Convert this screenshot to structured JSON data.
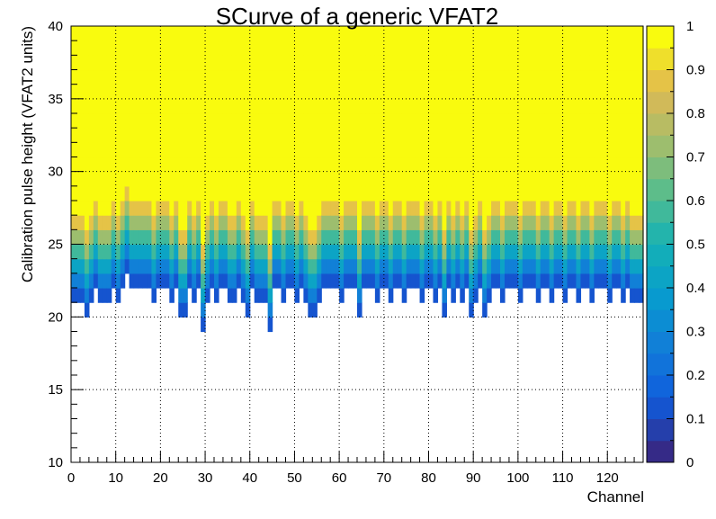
{
  "chart_data": {
    "type": "heatmap",
    "title": "SCurve of a generic VFAT2",
    "xlabel": "Channel",
    "ylabel": "Calibration pulse height (VFAT2 units)",
    "xlim": [
      0,
      128
    ],
    "ylim": [
      10,
      40
    ],
    "zlim": [
      0,
      1
    ],
    "x_ticks": [
      "0",
      "10",
      "20",
      "30",
      "40",
      "50",
      "60",
      "70",
      "80",
      "90",
      "100",
      "110",
      "120"
    ],
    "y_ticks": [
      "10",
      "15",
      "20",
      "25",
      "30",
      "35",
      "40"
    ],
    "z_ticks": [
      "0",
      "0.1",
      "0.2",
      "0.3",
      "0.4",
      "0.5",
      "0.6",
      "0.7",
      "0.8",
      "0.9",
      "1"
    ],
    "grid": true,
    "bins_x": 128,
    "bins_y": 30,
    "cell_value_model": "per-channel S-curve: efficiency rises from 0 at the turn-on pulse height to 1 about 6 units above it",
    "turn_on_pulse_height_per_channel": [
      21,
      21,
      21,
      20,
      21,
      22,
      21,
      21,
      21,
      22,
      21,
      22,
      23,
      22,
      22,
      22,
      22,
      22,
      21,
      22,
      22,
      22,
      21,
      22,
      20,
      20,
      22,
      21,
      22,
      19,
      21,
      22,
      21,
      22,
      22,
      21,
      21,
      22,
      21,
      20,
      22,
      21,
      21,
      21,
      19,
      22,
      22,
      21,
      22,
      22,
      21,
      22,
      21,
      20,
      20,
      21,
      22,
      22,
      22,
      22,
      21,
      22,
      22,
      22,
      20,
      22,
      22,
      22,
      21,
      22,
      22,
      21,
      22,
      22,
      21,
      22,
      22,
      22,
      21,
      22,
      22,
      21,
      22,
      20,
      22,
      21,
      22,
      21,
      22,
      20,
      21,
      22,
      20,
      21,
      22,
      22,
      21,
      22,
      22,
      22,
      21,
      22,
      22,
      22,
      21,
      22,
      22,
      21,
      22,
      22,
      21,
      22,
      22,
      21,
      22,
      22,
      21,
      22,
      22,
      22,
      21,
      22,
      22,
      21,
      22,
      21,
      21,
      21
    ]
  }
}
